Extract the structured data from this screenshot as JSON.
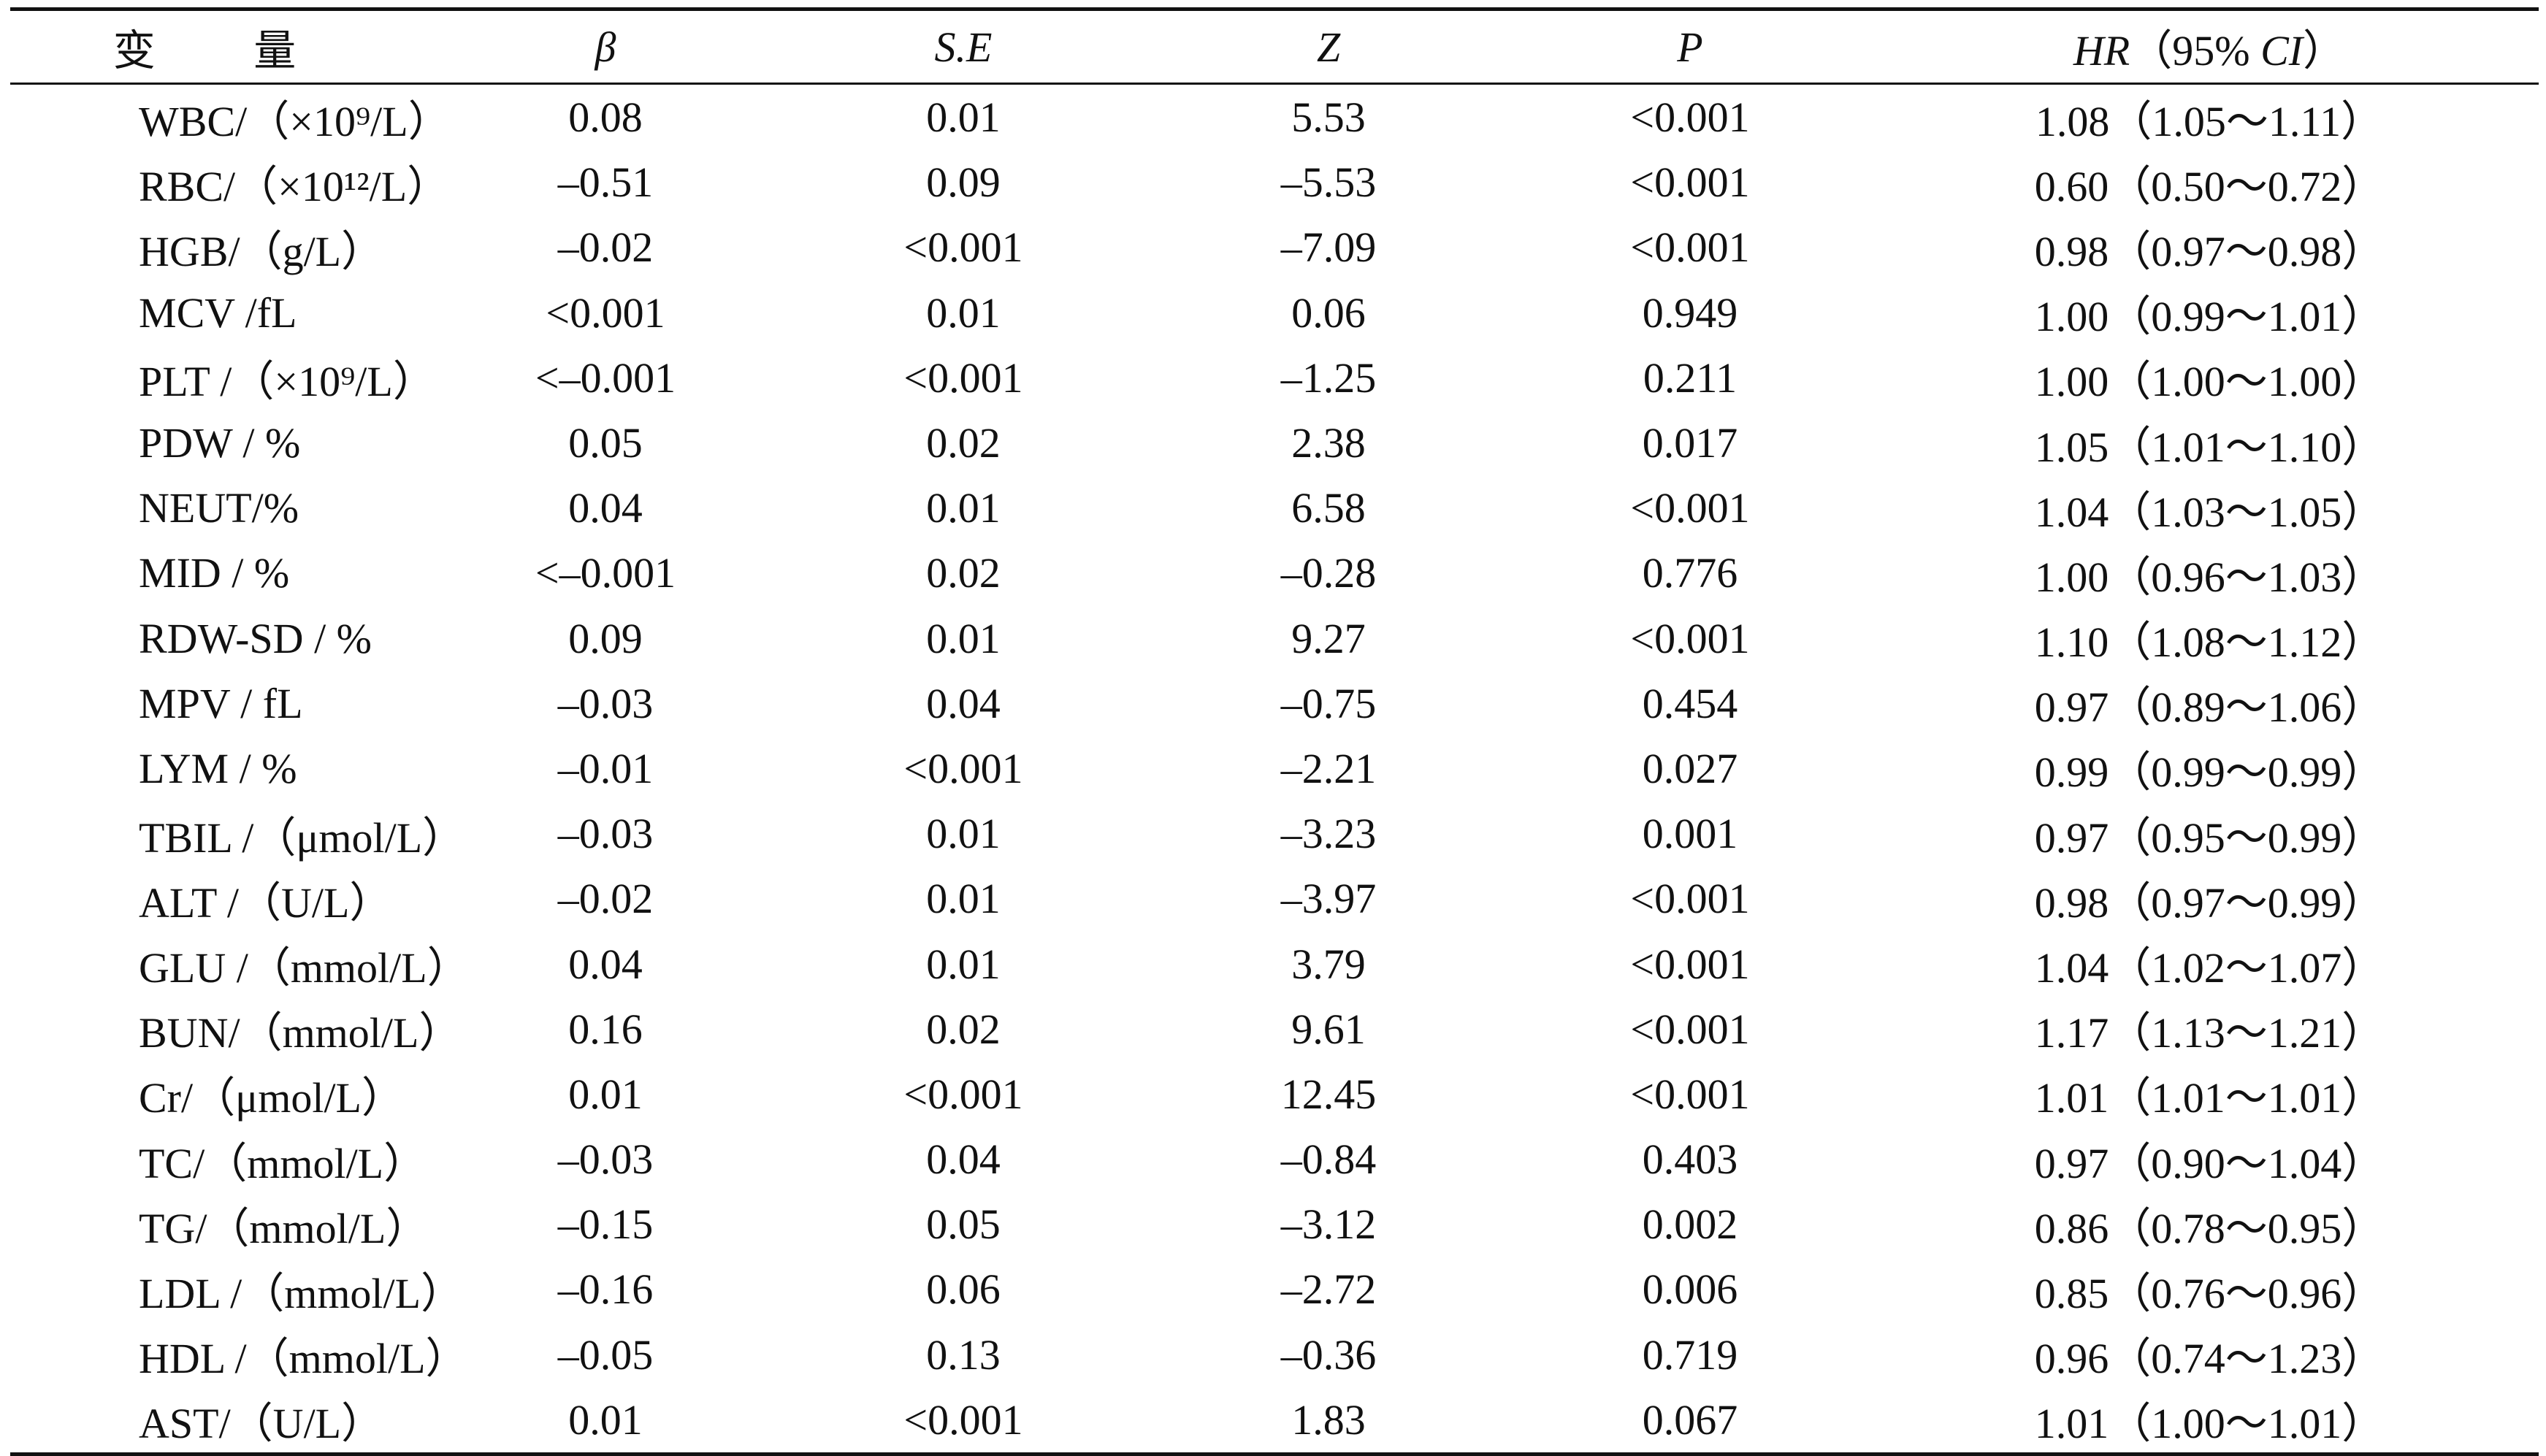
{
  "table": {
    "headers": {
      "variable": "变 量",
      "beta": "β",
      "se": "S.E",
      "z": "Z",
      "p": "P",
      "hr_prefix": "HR",
      "hr_paren_open": "（",
      "hr_ci_level": "95%",
      "hr_ci": "CI",
      "hr_paren_close": "）"
    },
    "rows": [
      {
        "variable": "WBC/（×10⁹/L）",
        "beta": "0.08",
        "se": "0.01",
        "z": "5.53",
        "p": "<0.001",
        "hr": "1.08（1.05～1.11）"
      },
      {
        "variable": "RBC/（×10¹²/L）",
        "beta": "–0.51",
        "se": "0.09",
        "z": "–5.53",
        "p": "<0.001",
        "hr": "0.60（0.50～0.72）"
      },
      {
        "variable": "HGB/（g/L）",
        "beta": "–0.02",
        "se": "<0.001",
        "z": "–7.09",
        "p": "<0.001",
        "hr": "0.98（0.97～0.98）"
      },
      {
        "variable": "MCV /fL",
        "beta": "<0.001",
        "se": "0.01",
        "z": "0.06",
        "p": "0.949",
        "hr": "1.00（0.99～1.01）"
      },
      {
        "variable": "PLT /（×10⁹/L）",
        "beta": "<–0.001",
        "se": "<0.001",
        "z": "–1.25",
        "p": "0.211",
        "hr": "1.00（1.00～1.00）"
      },
      {
        "variable": "PDW / %",
        "beta": "0.05",
        "se": "0.02",
        "z": "2.38",
        "p": "0.017",
        "hr": "1.05（1.01～1.10）"
      },
      {
        "variable": "NEUT/%",
        "beta": "0.04",
        "se": "0.01",
        "z": "6.58",
        "p": "<0.001",
        "hr": "1.04（1.03～1.05）"
      },
      {
        "variable": "MID / %",
        "beta": "<–0.001",
        "se": "0.02",
        "z": "–0.28",
        "p": "0.776",
        "hr": "1.00（0.96～1.03）"
      },
      {
        "variable": "RDW-SD / %",
        "beta": "0.09",
        "se": "0.01",
        "z": "9.27",
        "p": "<0.001",
        "hr": "1.10（1.08～1.12）"
      },
      {
        "variable": "MPV / fL",
        "beta": "–0.03",
        "se": "0.04",
        "z": "–0.75",
        "p": "0.454",
        "hr": "0.97（0.89～1.06）"
      },
      {
        "variable": "LYM / %",
        "beta": "–0.01",
        "se": "<0.001",
        "z": "–2.21",
        "p": "0.027",
        "hr": "0.99（0.99～0.99）"
      },
      {
        "variable": "TBIL /（μmol/L）",
        "beta": "–0.03",
        "se": "0.01",
        "z": "–3.23",
        "p": "0.001",
        "hr": "0.97（0.95～0.99）"
      },
      {
        "variable": "ALT /（U/L）",
        "beta": "–0.02",
        "se": "0.01",
        "z": "–3.97",
        "p": "<0.001",
        "hr": "0.98（0.97～0.99）"
      },
      {
        "variable": "GLU /（mmol/L）",
        "beta": "0.04",
        "se": "0.01",
        "z": "3.79",
        "p": "<0.001",
        "hr": "1.04（1.02～1.07）"
      },
      {
        "variable": "BUN/（mmol/L）",
        "beta": "0.16",
        "se": "0.02",
        "z": "9.61",
        "p": "<0.001",
        "hr": "1.17（1.13～1.21）"
      },
      {
        "variable": "Cr/（μmol/L）",
        "beta": "0.01",
        "se": "<0.001",
        "z": "12.45",
        "p": "<0.001",
        "hr": "1.01（1.01～1.01）"
      },
      {
        "variable": "TC/（mmol/L）",
        "beta": "–0.03",
        "se": "0.04",
        "z": "–0.84",
        "p": "0.403",
        "hr": "0.97（0.90～1.04）"
      },
      {
        "variable": "TG/（mmol/L）",
        "beta": "–0.15",
        "se": "0.05",
        "z": "–3.12",
        "p": "0.002",
        "hr": "0.86（0.78～0.95）"
      },
      {
        "variable": "LDL /（mmol/L）",
        "beta": "–0.16",
        "se": "0.06",
        "z": "–2.72",
        "p": "0.006",
        "hr": "0.85（0.76～0.96）"
      },
      {
        "variable": "HDL /（mmol/L）",
        "beta": "–0.05",
        "se": "0.13",
        "z": "–0.36",
        "p": "0.719",
        "hr": "0.96（0.74～1.23）"
      },
      {
        "variable": "AST/（U/L）",
        "beta": "0.01",
        "se": "<0.001",
        "z": "1.83",
        "p": "0.067",
        "hr": "1.01（1.00～1.01）"
      }
    ]
  }
}
